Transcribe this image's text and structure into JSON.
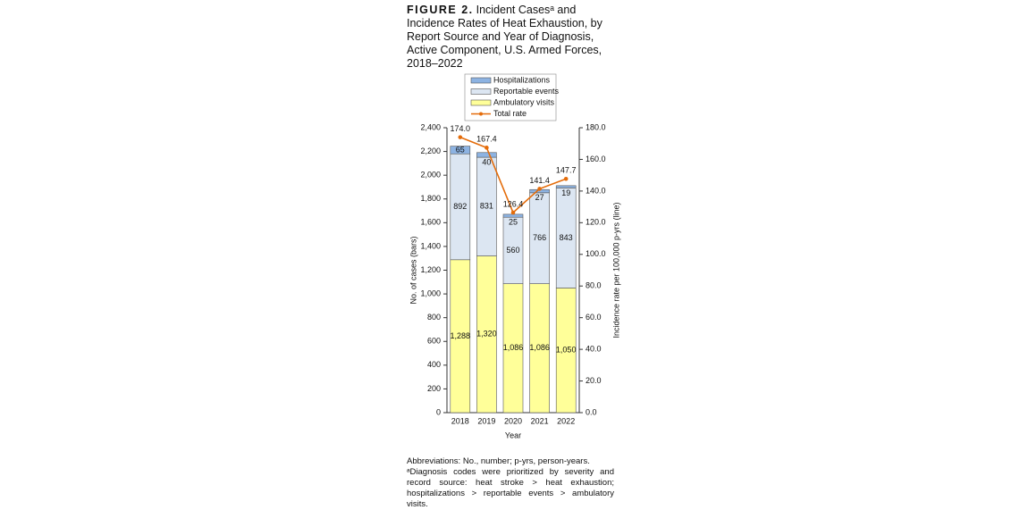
{
  "chart_data": {
    "type": "stacked-bar-line",
    "title_label": "FIGURE 2.",
    "title": "Incident Casesᵃ and Incidence Rates of Heat Exhaustion, by Report Source and Year of Diagnosis, Active Component, U.S. Armed Forces, 2018–2022",
    "x_label": "Year",
    "y_label": "No. of cases (bars)",
    "y2_label": "Incidence rate per 100,000 p-yrs (line)",
    "categories": [
      "2018",
      "2019",
      "2020",
      "2021",
      "2022"
    ],
    "series": [
      {
        "name": "Ambulatory visits",
        "color": "#ffff99",
        "values": [
          1288,
          1320,
          1086,
          1086,
          1050
        ],
        "value_labels": [
          "1,288",
          "1,320",
          "1,086",
          "1,086",
          "1,050"
        ]
      },
      {
        "name": "Reportable events",
        "color": "#dce6f2",
        "values": [
          892,
          831,
          560,
          766,
          843
        ]
      },
      {
        "name": "Hospitalizations",
        "color": "#8db3e2",
        "values": [
          65,
          40,
          25,
          27,
          19
        ]
      },
      {
        "name": "Total rate",
        "color": "#e46c0a",
        "axis": "y2",
        "type": "line",
        "values": [
          174.0,
          167.4,
          126.4,
          141.4,
          147.7
        ],
        "value_labels": [
          "174.0",
          "167.4",
          "126.4",
          "141.4",
          "147.7"
        ]
      }
    ],
    "ylim": [
      0,
      2400
    ],
    "yticks": [
      0,
      200,
      400,
      600,
      800,
      {
        "value": 1000,
        "label": "1,000"
      },
      {
        "value": 1200,
        "label": "1,200"
      },
      {
        "value": 1400,
        "label": "1,400"
      },
      {
        "value": 1600,
        "label": "1,600"
      },
      {
        "value": 1800,
        "label": "1,800"
      },
      {
        "value": 2000,
        "label": "2,000"
      },
      {
        "value": 2200,
        "label": "2,200"
      },
      {
        "value": 2400,
        "label": "2,400"
      }
    ],
    "y2lim": [
      0,
      180
    ],
    "y2ticks": [
      {
        "value": 0,
        "label": "0.0"
      },
      {
        "value": 20,
        "label": "20.0"
      },
      {
        "value": 40,
        "label": "40.0"
      },
      {
        "value": 60,
        "label": "60.0"
      },
      {
        "value": 80,
        "label": "80.0"
      },
      {
        "value": 100,
        "label": "100.0"
      },
      {
        "value": 120,
        "label": "120.0"
      },
      {
        "value": 140,
        "label": "140.0"
      },
      {
        "value": 160,
        "label": "160.0"
      },
      {
        "value": 180,
        "label": "180.0"
      }
    ],
    "footnotes": [
      "Abbreviations: No., number; p-yrs, person-years.",
      "ᵃDiagnosis codes were prioritized by severity and record source: heat stroke > heat exhaustion; hospitalizations > reportable events > ambulatory visits."
    ]
  }
}
